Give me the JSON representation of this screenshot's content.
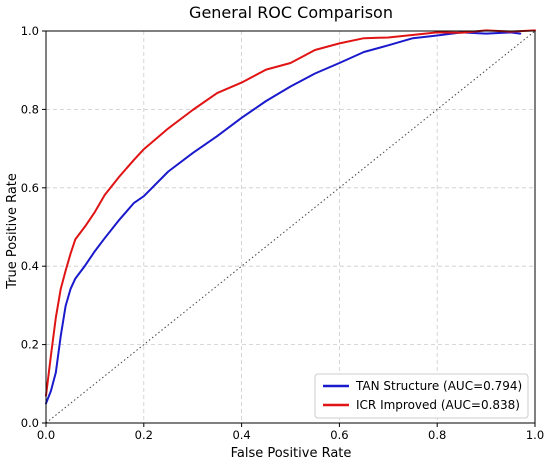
{
  "chart_data": {
    "type": "line",
    "title": "General ROC Comparison",
    "xlabel": "False Positive Rate",
    "ylabel": "True Positive Rate",
    "xlim": [
      0,
      1
    ],
    "ylim": [
      0,
      1
    ],
    "xticks": [
      "0.0",
      "0.2",
      "0.4",
      "0.6",
      "0.8",
      "1.0"
    ],
    "yticks": [
      "0.0",
      "0.2",
      "0.4",
      "0.6",
      "0.8",
      "1.0"
    ],
    "grid": true,
    "legend_position": "lower-right",
    "diagonal_reference": true,
    "series": [
      {
        "name": "TAN Structure (AUC=0.794)",
        "color": "#1a1acc",
        "x": [
          0.0,
          0.01,
          0.02,
          0.03,
          0.04,
          0.05,
          0.06,
          0.08,
          0.1,
          0.12,
          0.15,
          0.18,
          0.2,
          0.25,
          0.3,
          0.35,
          0.4,
          0.45,
          0.5,
          0.55,
          0.6,
          0.65,
          0.7,
          0.75,
          0.8,
          0.85,
          0.9,
          0.95,
          0.97
        ],
        "y": [
          0.05,
          0.08,
          0.13,
          0.22,
          0.3,
          0.34,
          0.37,
          0.4,
          0.44,
          0.47,
          0.52,
          0.56,
          0.58,
          0.64,
          0.69,
          0.73,
          0.78,
          0.82,
          0.86,
          0.89,
          0.92,
          0.945,
          0.965,
          0.98,
          0.99,
          0.995,
          0.995,
          0.995,
          0.995
        ]
      },
      {
        "name": "ICR Improved (AUC=0.838)",
        "color": "#e01414",
        "x": [
          0.0,
          0.01,
          0.02,
          0.03,
          0.04,
          0.05,
          0.06,
          0.08,
          0.1,
          0.12,
          0.15,
          0.18,
          0.2,
          0.25,
          0.3,
          0.35,
          0.4,
          0.45,
          0.5,
          0.55,
          0.6,
          0.65,
          0.7,
          0.8,
          0.85,
          0.9,
          0.95,
          1.0
        ],
        "y": [
          0.07,
          0.17,
          0.27,
          0.34,
          0.39,
          0.43,
          0.47,
          0.5,
          0.54,
          0.58,
          0.63,
          0.67,
          0.7,
          0.75,
          0.8,
          0.84,
          0.87,
          0.9,
          0.92,
          0.95,
          0.97,
          0.98,
          0.985,
          0.995,
          0.997,
          1.0,
          1.0,
          1.0
        ]
      }
    ]
  }
}
